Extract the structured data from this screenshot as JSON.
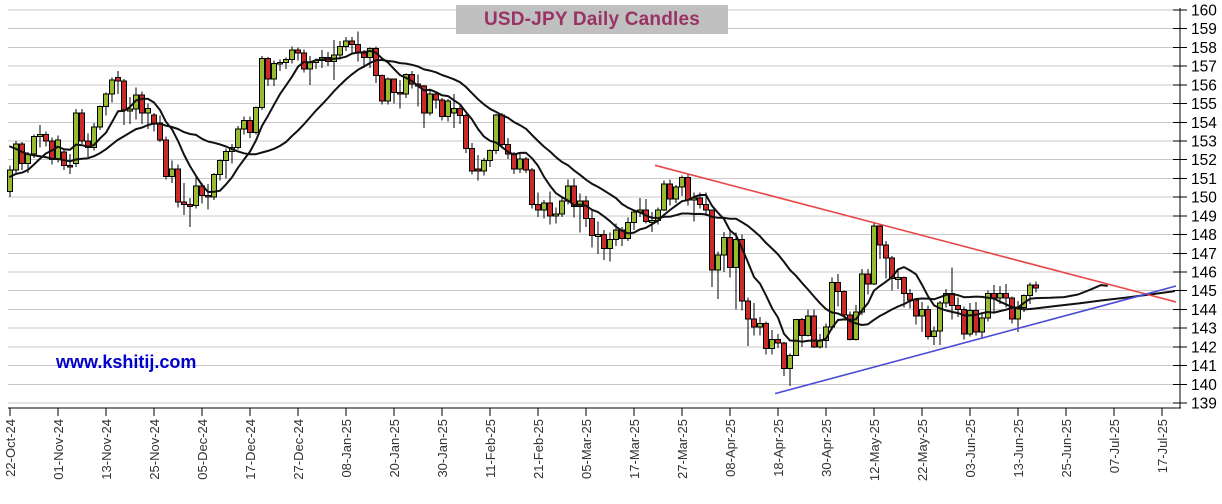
{
  "title": "USD-JPY Daily Candles",
  "watermark": "www.kshitij.com",
  "colors": {
    "bull_candle": "#98ba33",
    "bear_candle": "#cb2a2a",
    "candle_border": "#000000",
    "moving_average": "#111111",
    "resistance_line": "#e84848",
    "support_line": "#4a4ad4",
    "grid": "#c8c8c8",
    "axis": "#000000",
    "title_text": "#993366",
    "title_bg": "#c0c0c0",
    "watermark_text": "#0000cc"
  },
  "chart_data": {
    "type": "candlestick",
    "title": "USD-JPY Daily Candles",
    "ylabel": "",
    "xlabel": "",
    "ylim": [
      139,
      160
    ],
    "grid": "horizontal",
    "y_axis_side": "right",
    "y_ticks": [
      139,
      140,
      141,
      142,
      143,
      144,
      145,
      146,
      147,
      148,
      149,
      150,
      151,
      152,
      153,
      154,
      155,
      156,
      157,
      158,
      159,
      160
    ],
    "x_tick_labels": [
      "22-Oct-24",
      "01-Nov-24",
      "13-Nov-24",
      "25-Nov-24",
      "05-Dec-24",
      "17-Dec-24",
      "27-Dec-24",
      "08-Jan-25",
      "20-Jan-25",
      "30-Jan-25",
      "11-Feb-25",
      "21-Feb-25",
      "05-Mar-25",
      "17-Mar-25",
      "27-Mar-25",
      "08-Apr-25",
      "18-Apr-25",
      "30-Apr-25",
      "12-May-25",
      "22-May-25",
      "03-Jun-25",
      "13-Jun-25",
      "25-Jun-25",
      "07-Jul-25",
      "17-Jul-25"
    ],
    "candles_per_tick": 8,
    "candles_ohlc": [
      [
        150.3,
        151.7,
        150.0,
        151.45
      ],
      [
        151.45,
        153.0,
        151.2,
        152.85
      ],
      [
        152.85,
        152.95,
        151.45,
        151.8
      ],
      [
        151.8,
        152.4,
        151.3,
        152.3
      ],
      [
        152.3,
        153.35,
        152.1,
        153.25
      ],
      [
        153.25,
        153.85,
        152.65,
        153.35
      ],
      [
        153.35,
        153.5,
        152.7,
        153.0
      ],
      [
        153.0,
        153.2,
        151.75,
        152.0
      ],
      [
        152.0,
        153.3,
        151.85,
        153.05
      ],
      [
        152.4,
        152.55,
        151.45,
        151.7
      ],
      [
        151.7,
        152.3,
        151.25,
        151.6
      ],
      [
        151.8,
        154.7,
        151.6,
        154.5
      ],
      [
        154.5,
        154.7,
        152.85,
        153.0
      ],
      [
        153.0,
        153.4,
        152.15,
        152.65
      ],
      [
        152.65,
        153.95,
        152.5,
        153.75
      ],
      [
        153.75,
        154.9,
        153.6,
        154.85
      ],
      [
        154.85,
        155.6,
        154.35,
        155.5
      ],
      [
        155.5,
        156.4,
        155.05,
        156.25
      ],
      [
        156.4,
        156.75,
        155.5,
        156.2
      ],
      [
        156.2,
        156.3,
        153.85,
        154.65
      ],
      [
        154.65,
        155.35,
        153.9,
        154.7
      ],
      [
        154.7,
        155.85,
        154.15,
        155.45
      ],
      [
        155.45,
        155.65,
        153.9,
        154.5
      ],
      [
        154.5,
        155.0,
        153.65,
        154.75
      ],
      [
        154.4,
        154.5,
        153.5,
        153.95
      ],
      [
        153.95,
        154.35,
        152.95,
        153.05
      ],
      [
        153.05,
        153.25,
        150.95,
        151.1
      ],
      [
        151.1,
        151.95,
        150.75,
        151.5
      ],
      [
        151.5,
        151.75,
        149.45,
        149.75
      ],
      [
        149.75,
        150.75,
        149.05,
        149.6
      ],
      [
        149.6,
        149.95,
        148.4,
        149.55
      ],
      [
        149.55,
        151.2,
        149.4,
        150.6
      ],
      [
        150.6,
        150.75,
        149.65,
        150.1
      ],
      [
        150.1,
        150.7,
        149.35,
        150.0
      ],
      [
        150.0,
        151.3,
        149.85,
        151.2
      ],
      [
        151.2,
        152.0,
        150.9,
        151.95
      ],
      [
        151.95,
        152.6,
        151.0,
        152.45
      ],
      [
        152.45,
        152.85,
        151.8,
        152.65
      ],
      [
        152.65,
        153.8,
        152.55,
        153.65
      ],
      [
        153.65,
        154.3,
        153.35,
        154.1
      ],
      [
        154.1,
        154.3,
        153.15,
        153.45
      ],
      [
        153.45,
        154.85,
        153.35,
        154.8
      ],
      [
        154.8,
        157.55,
        154.65,
        157.4
      ],
      [
        157.4,
        157.5,
        155.95,
        156.3
      ],
      [
        156.3,
        157.3,
        155.95,
        157.15
      ],
      [
        157.15,
        157.35,
        156.75,
        157.2
      ],
      [
        157.2,
        157.45,
        156.85,
        157.35
      ],
      [
        157.35,
        158.05,
        157.15,
        157.85
      ],
      [
        157.85,
        158.0,
        157.3,
        157.7
      ],
      [
        157.7,
        157.9,
        156.65,
        156.85
      ],
      [
        156.85,
        157.55,
        156.0,
        157.2
      ],
      [
        157.2,
        157.4,
        156.85,
        157.3
      ],
      [
        157.3,
        157.85,
        156.9,
        157.45
      ],
      [
        157.45,
        157.75,
        157.0,
        157.25
      ],
      [
        157.25,
        158.4,
        156.25,
        157.6
      ],
      [
        157.6,
        158.35,
        157.35,
        158.05
      ],
      [
        158.05,
        158.55,
        157.8,
        158.35
      ],
      [
        158.35,
        158.55,
        157.65,
        158.15
      ],
      [
        158.15,
        158.85,
        157.25,
        157.7
      ],
      [
        157.7,
        157.85,
        156.9,
        157.45
      ],
      [
        157.45,
        158.0,
        156.9,
        157.95
      ],
      [
        157.95,
        158.05,
        156.1,
        156.5
      ],
      [
        156.5,
        156.55,
        154.95,
        155.15
      ],
      [
        155.15,
        156.4,
        154.95,
        156.3
      ],
      [
        156.3,
        156.35,
        155.0,
        155.6
      ],
      [
        155.6,
        156.25,
        154.75,
        155.5
      ],
      [
        155.5,
        156.6,
        155.3,
        156.55
      ],
      [
        156.55,
        156.75,
        155.8,
        156.05
      ],
      [
        156.05,
        156.55,
        154.85,
        155.95
      ],
      [
        155.95,
        156.0,
        153.7,
        154.5
      ],
      [
        154.5,
        155.75,
        154.35,
        155.5
      ],
      [
        155.5,
        155.6,
        154.75,
        155.2
      ],
      [
        155.2,
        155.3,
        154.1,
        154.3
      ],
      [
        154.3,
        155.25,
        154.05,
        155.15
      ],
      [
        154.5,
        155.5,
        153.7,
        154.75
      ],
      [
        154.75,
        155.0,
        153.9,
        154.35
      ],
      [
        154.35,
        154.45,
        152.35,
        152.6
      ],
      [
        152.6,
        152.9,
        151.2,
        151.4
      ],
      [
        151.5,
        152.25,
        150.9,
        151.4
      ],
      [
        151.4,
        152.1,
        151.15,
        151.95
      ],
      [
        151.95,
        152.55,
        151.6,
        152.5
      ],
      [
        152.5,
        154.45,
        152.3,
        154.4
      ],
      [
        154.4,
        154.5,
        152.6,
        152.8
      ],
      [
        152.8,
        153.15,
        152.05,
        152.3
      ],
      [
        152.3,
        152.4,
        151.25,
        151.5
      ],
      [
        151.5,
        152.3,
        151.3,
        152.05
      ],
      [
        152.05,
        152.15,
        151.3,
        151.45
      ],
      [
        151.45,
        151.55,
        149.4,
        149.6
      ],
      [
        149.6,
        150.25,
        148.95,
        149.3
      ],
      [
        149.3,
        149.85,
        148.85,
        149.7
      ],
      [
        149.7,
        150.3,
        148.55,
        149.0
      ],
      [
        149.0,
        149.45,
        148.6,
        149.1
      ],
      [
        149.1,
        149.95,
        148.95,
        149.8
      ],
      [
        149.8,
        150.95,
        149.6,
        150.6
      ],
      [
        150.6,
        151.0,
        148.9,
        149.5
      ],
      [
        149.5,
        150.2,
        148.1,
        149.8
      ],
      [
        149.8,
        150.05,
        148.4,
        148.85
      ],
      [
        148.85,
        149.3,
        147.3,
        147.95
      ],
      [
        147.95,
        148.7,
        146.95,
        148.0
      ],
      [
        148.0,
        148.25,
        146.65,
        147.25
      ],
      [
        147.25,
        148.1,
        146.55,
        147.75
      ],
      [
        147.75,
        148.6,
        147.4,
        148.25
      ],
      [
        148.25,
        148.4,
        147.4,
        147.8
      ],
      [
        147.8,
        148.9,
        147.65,
        148.65
      ],
      [
        148.65,
        149.3,
        148.25,
        149.2
      ],
      [
        149.2,
        149.95,
        148.95,
        149.3
      ],
      [
        149.3,
        149.9,
        148.6,
        148.7
      ],
      [
        148.7,
        149.2,
        148.15,
        148.75
      ],
      [
        148.75,
        149.45,
        148.55,
        149.3
      ],
      [
        149.3,
        150.9,
        149.25,
        150.7
      ],
      [
        150.7,
        150.95,
        149.55,
        149.9
      ],
      [
        149.9,
        150.65,
        149.7,
        150.55
      ],
      [
        150.55,
        151.15,
        150.05,
        151.05
      ],
      [
        151.05,
        151.2,
        149.55,
        149.85
      ],
      [
        149.85,
        150.25,
        148.7,
        149.95
      ],
      [
        149.95,
        150.25,
        149.4,
        149.6
      ],
      [
        149.6,
        150.25,
        149.0,
        149.3
      ],
      [
        149.3,
        149.35,
        145.2,
        146.1
      ],
      [
        146.1,
        147.1,
        144.55,
        146.9
      ],
      [
        146.9,
        148.15,
        146.0,
        147.85
      ],
      [
        147.85,
        148.3,
        145.7,
        146.25
      ],
      [
        146.25,
        148.1,
        144.0,
        147.75
      ],
      [
        147.75,
        148.0,
        143.95,
        144.45
      ],
      [
        144.45,
        144.65,
        142.05,
        143.5
      ],
      [
        143.5,
        144.35,
        142.6,
        143.05
      ],
      [
        143.05,
        143.6,
        142.6,
        143.25
      ],
      [
        143.25,
        143.35,
        141.6,
        141.9
      ],
      [
        141.9,
        142.9,
        141.6,
        142.4
      ],
      [
        142.4,
        142.7,
        141.95,
        142.2
      ],
      [
        142.2,
        142.25,
        140.45,
        140.85
      ],
      [
        140.85,
        141.65,
        139.9,
        141.55
      ],
      [
        141.55,
        143.5,
        141.5,
        143.45
      ],
      [
        143.45,
        143.55,
        142.0,
        142.6
      ],
      [
        142.6,
        144.0,
        142.55,
        143.65
      ],
      [
        143.65,
        144.0,
        141.95,
        142.0
      ],
      [
        142.0,
        142.7,
        141.9,
        142.35
      ],
      [
        142.35,
        143.25,
        141.95,
        143.05
      ],
      [
        143.05,
        145.7,
        142.9,
        145.45
      ],
      [
        145.45,
        145.9,
        144.15,
        144.95
      ],
      [
        144.95,
        145.0,
        143.55,
        143.7
      ],
      [
        143.7,
        143.9,
        142.35,
        142.4
      ],
      [
        142.4,
        144.25,
        142.35,
        143.85
      ],
      [
        143.85,
        146.15,
        143.7,
        145.9
      ],
      [
        145.9,
        146.15,
        144.8,
        145.35
      ],
      [
        145.35,
        148.65,
        145.3,
        148.45
      ],
      [
        148.45,
        148.5,
        146.7,
        147.45
      ],
      [
        147.45,
        147.65,
        145.65,
        146.75
      ],
      [
        146.75,
        146.85,
        145.0,
        145.65
      ],
      [
        145.65,
        146.1,
        145.1,
        145.7
      ],
      [
        145.7,
        145.75,
        144.1,
        144.85
      ],
      [
        144.85,
        145.1,
        144.05,
        144.5
      ],
      [
        144.5,
        144.6,
        143.2,
        143.65
      ],
      [
        143.65,
        144.4,
        142.8,
        144.0
      ],
      [
        144.0,
        144.2,
        142.4,
        142.55
      ],
      [
        142.55,
        143.1,
        142.1,
        142.85
      ],
      [
        142.85,
        144.45,
        142.1,
        144.35
      ],
      [
        144.35,
        145.1,
        144.1,
        144.85
      ],
      [
        144.85,
        146.25,
        143.45,
        144.2
      ],
      [
        144.2,
        144.65,
        143.6,
        144.0
      ],
      [
        144.0,
        144.15,
        142.4,
        142.7
      ],
      [
        142.7,
        144.35,
        142.55,
        143.95
      ],
      [
        143.95,
        144.4,
        142.6,
        142.8
      ],
      [
        142.8,
        143.75,
        142.5,
        143.55
      ],
      [
        143.55,
        145.0,
        143.35,
        144.85
      ],
      [
        144.85,
        145.3,
        143.85,
        144.6
      ],
      [
        144.6,
        145.25,
        144.3,
        144.85
      ],
      [
        144.85,
        145.35,
        144.1,
        144.6
      ],
      [
        144.6,
        144.7,
        143.25,
        143.5
      ],
      [
        143.5,
        144.45,
        142.8,
        144.1
      ],
      [
        144.1,
        144.8,
        143.85,
        144.75
      ],
      [
        144.75,
        145.45,
        144.3,
        145.3
      ],
      [
        145.3,
        145.5,
        144.9,
        145.15
      ]
    ],
    "moving_averages": [
      {
        "name": "fast-ma",
        "period": 8
      },
      {
        "name": "slow-ma",
        "period": 21
      }
    ],
    "ma_prehistory_closes": [
      155.8,
      155.5,
      155.2,
      154.9,
      154.6,
      154.3,
      154.0,
      153.7,
      153.4,
      153.1,
      152.8,
      152.5,
      152.2,
      151.9,
      151.6,
      151.3,
      151.1,
      150.95,
      150.85,
      150.75,
      150.7
    ],
    "ma_projections": {
      "fast": [
        [
          1050,
          144.62
        ],
        [
          1064,
          144.66
        ],
        [
          1078,
          144.8
        ],
        [
          1090,
          145.05
        ],
        [
          1101,
          145.3
        ],
        [
          1107,
          145.26
        ]
      ],
      "slow": [
        [
          1058,
          144.2
        ],
        [
          1080,
          144.33
        ],
        [
          1102,
          144.48
        ],
        [
          1126,
          144.63
        ],
        [
          1150,
          144.8
        ],
        [
          1174,
          144.97
        ]
      ]
    },
    "trendlines": [
      {
        "name": "descending-resistance",
        "from_x_price": [
          655,
          151.7
        ],
        "to_x_price": [
          1176,
          144.4
        ]
      },
      {
        "name": "ascending-support",
        "from_x_price": [
          775,
          139.5
        ],
        "to_x_price": [
          1176,
          145.25
        ]
      }
    ]
  }
}
